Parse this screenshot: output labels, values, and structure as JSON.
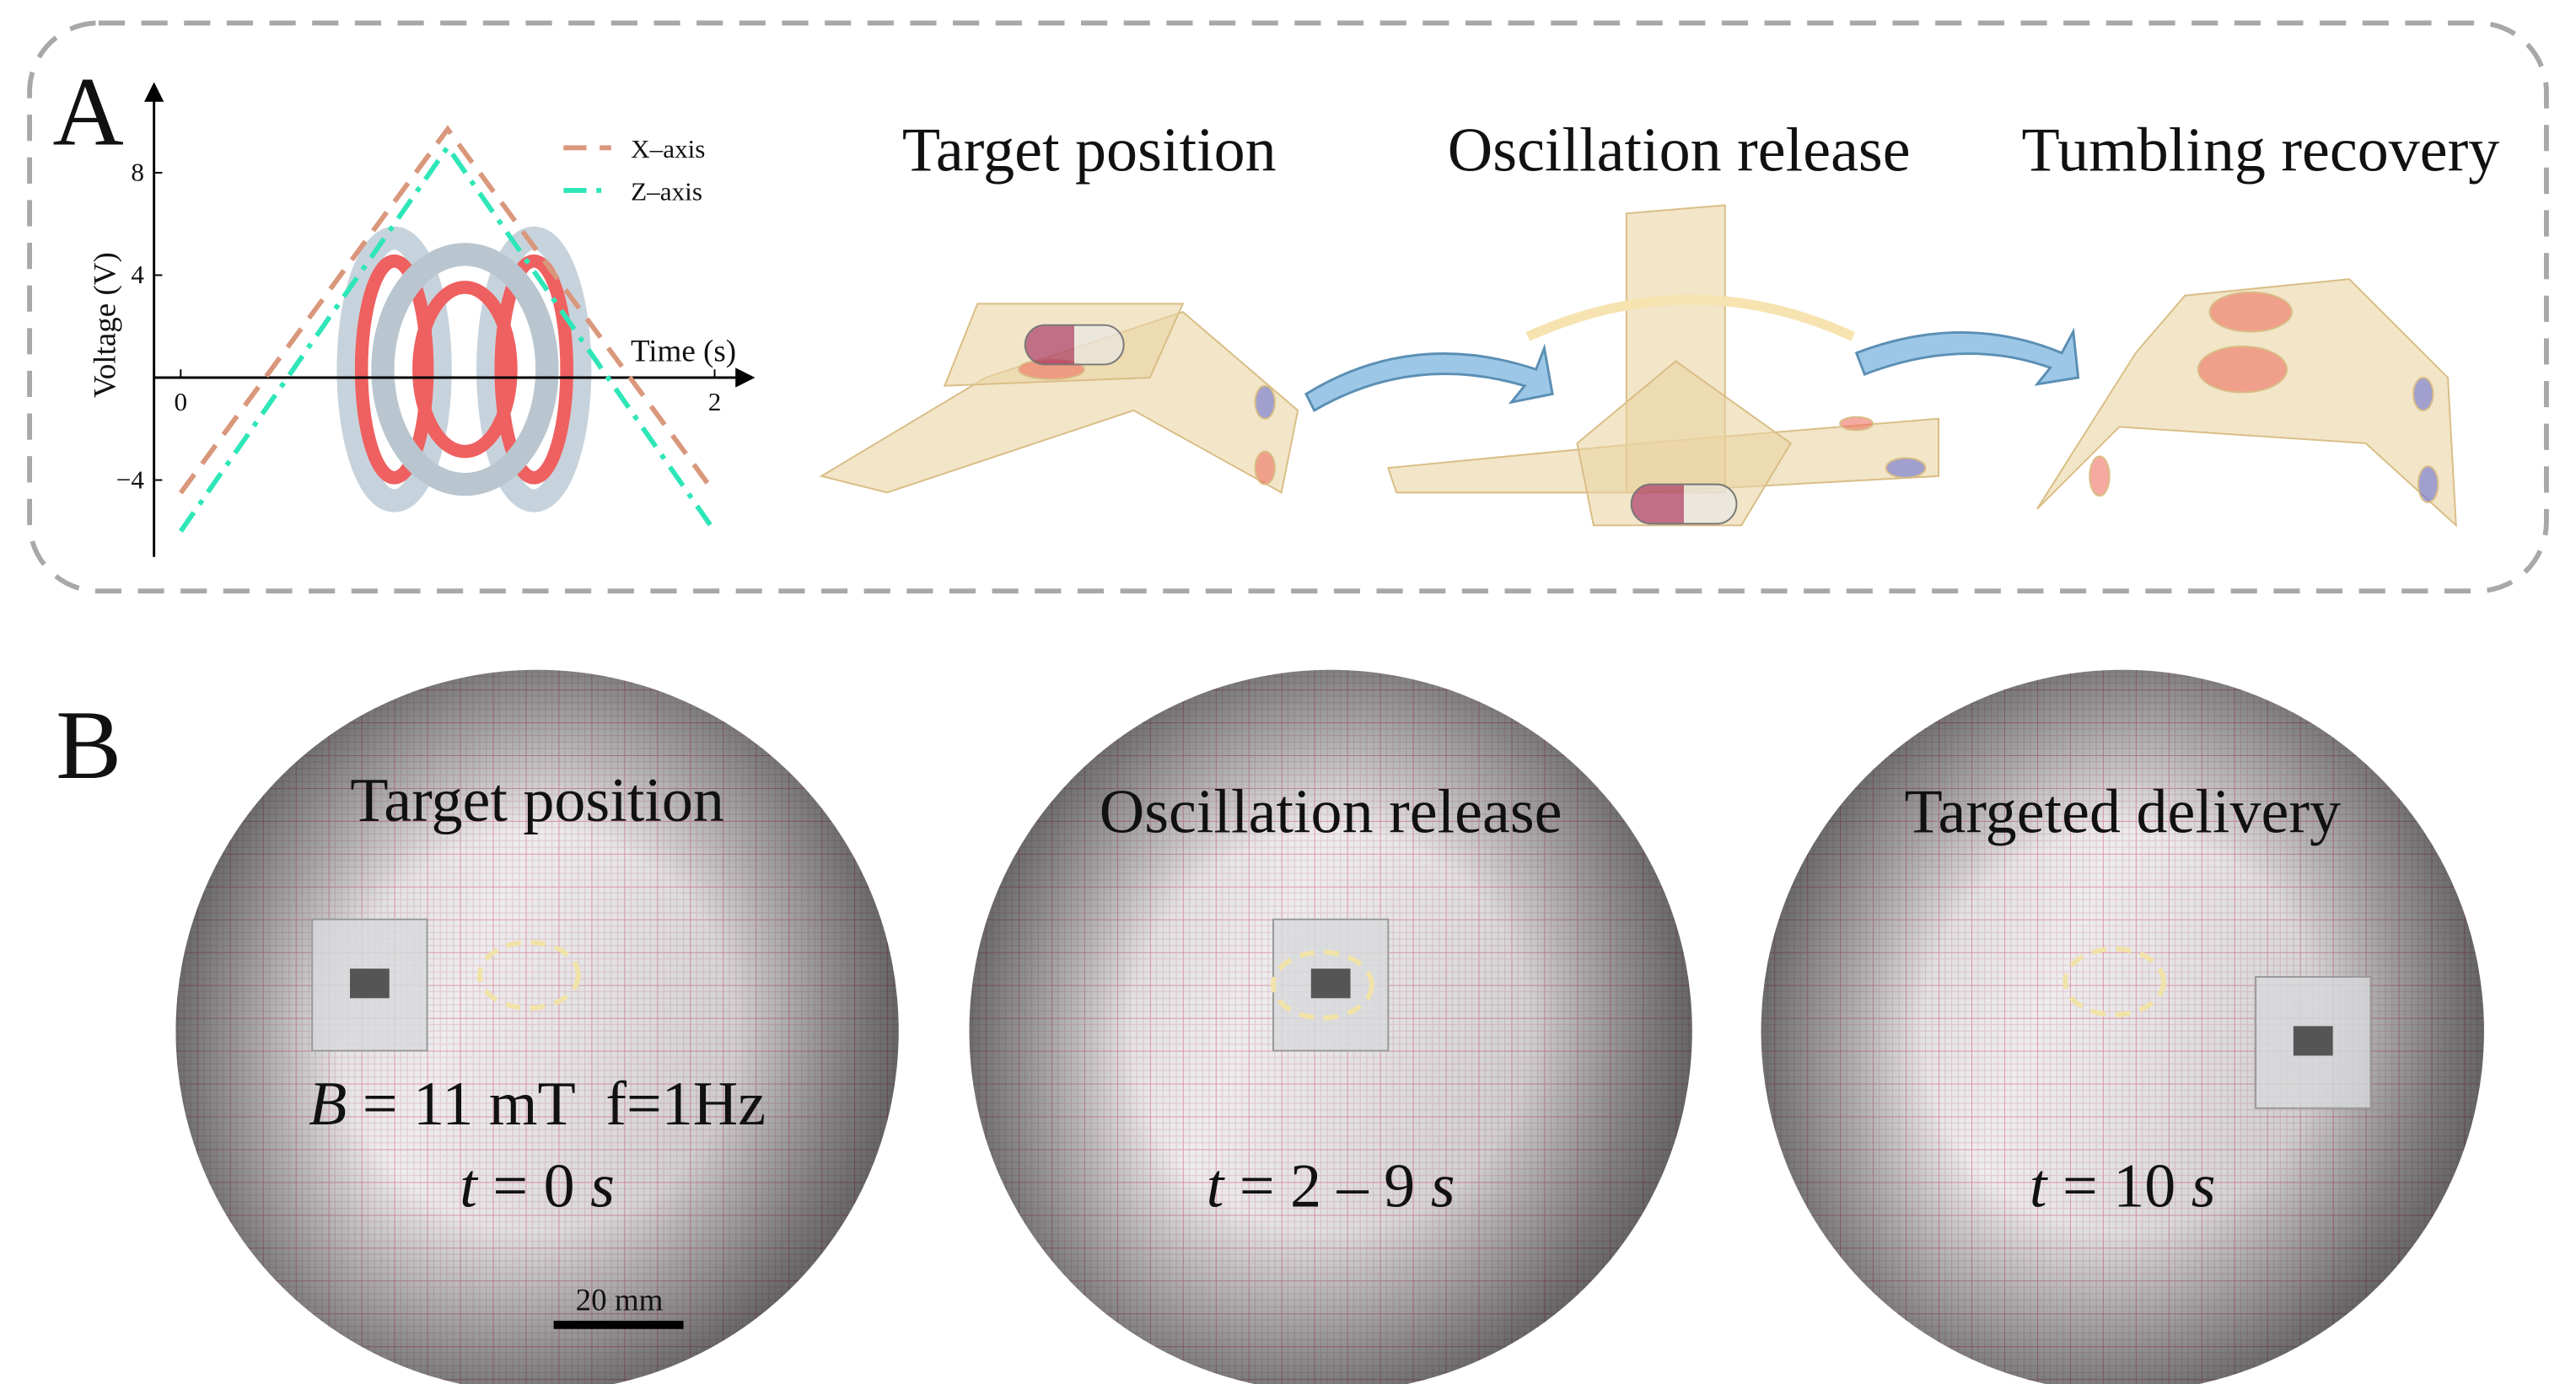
{
  "panel_a": {
    "label": "A",
    "titles": [
      "Target position",
      "Oscillation release",
      "Tumbling recovery"
    ]
  },
  "chart_data": {
    "type": "line",
    "x_label": "Time (s)",
    "y_label": "Voltage (V)",
    "x": [
      0,
      1,
      2
    ],
    "series": [
      {
        "name": "X–axis",
        "color": "#d9977c",
        "dash": "dashed",
        "values": [
          -4.5,
          9.7,
          -4.5
        ]
      },
      {
        "name": "Z–axis",
        "color": "#2fe6b8",
        "dash": "dashdot",
        "values": [
          -6,
          9,
          -6
        ]
      }
    ],
    "xlim": [
      -0.1,
      2.1
    ],
    "ylim": [
      -7,
      11
    ],
    "xticks": [
      0,
      2
    ],
    "yticks": [
      {
        "value": -4,
        "label": "−4"
      },
      4,
      8
    ]
  },
  "panel_b": {
    "label": "B",
    "photos": [
      {
        "title": "Target position",
        "lines": [
          [
            "B",
            " = 11 mT  f=1Hz"
          ],
          [
            "t",
            " = 0 ",
            "s"
          ]
        ]
      },
      {
        "title": "Oscillation release",
        "lines": [
          [
            "t",
            " = 2 – 9 ",
            "s"
          ]
        ]
      },
      {
        "title": "Targeted delivery",
        "lines": [
          [
            "t",
            " = 10 ",
            "s"
          ]
        ]
      }
    ],
    "scale_bar": "20 mm"
  }
}
